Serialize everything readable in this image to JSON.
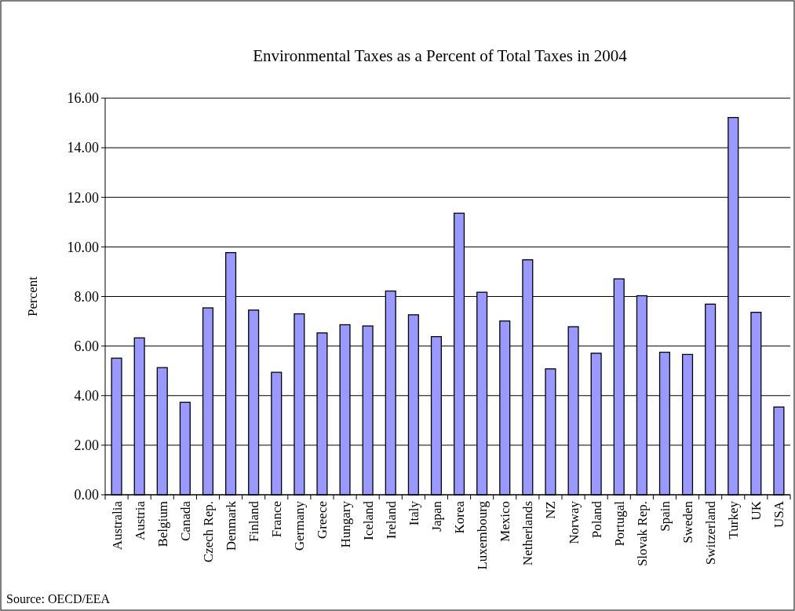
{
  "chart_data": {
    "type": "bar",
    "title": "Environmental Taxes as a Percent of Total Taxes in 2004",
    "ylabel": "Percent",
    "categories": [
      "Australia",
      "Austria",
      "Belgium",
      "Canada",
      "Czech Rep.",
      "Denmark",
      "Finland",
      "France",
      "Germany",
      "Greece",
      "Hungary",
      "Iceland",
      "Ireland",
      "Italy",
      "Japan",
      "Korea",
      "Luxembourg",
      "Mexico",
      "Netherlands",
      "NZ",
      "Norway",
      "Poland",
      "Portugal",
      "Slovak Rep.",
      "Spain",
      "Sweden",
      "Switzerland",
      "Turkey",
      "UK",
      "USA"
    ],
    "values": [
      5.51,
      6.33,
      5.13,
      3.73,
      7.54,
      9.77,
      7.45,
      4.94,
      7.3,
      6.53,
      6.86,
      6.81,
      8.22,
      7.26,
      6.38,
      11.36,
      8.17,
      7.01,
      9.48,
      5.08,
      6.78,
      5.71,
      8.71,
      8.03,
      5.75,
      5.66,
      7.69,
      15.22,
      7.36,
      3.54
    ],
    "color": "#9999ff",
    "ylim": [
      0,
      16
    ],
    "yticks": [
      {
        "value": 0,
        "label": "0.00"
      },
      {
        "value": 2,
        "label": "2.00"
      },
      {
        "value": 4,
        "label": "4.00"
      },
      {
        "value": 6,
        "label": "6.00"
      },
      {
        "value": 8,
        "label": "8.00"
      },
      {
        "value": 10,
        "label": "10.00"
      },
      {
        "value": 12,
        "label": "12.00"
      },
      {
        "value": 14,
        "label": "14.00"
      },
      {
        "value": 16,
        "label": "16.00"
      }
    ],
    "grid": "y",
    "annotations": [
      "Source: OECD/EEA"
    ]
  }
}
